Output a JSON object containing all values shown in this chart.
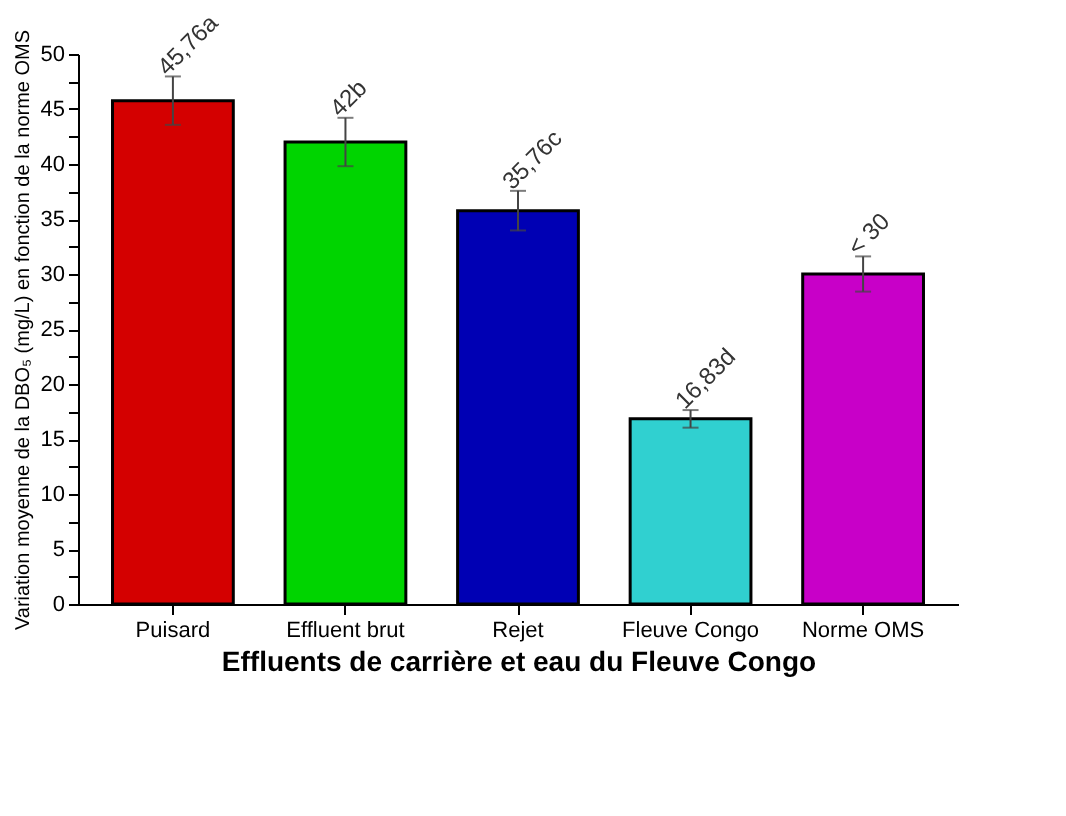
{
  "chart_data": {
    "type": "bar",
    "xlabel": "Effluents de carrière et eau du Fleuve Congo",
    "ylabel": "Variation moyenne de la DBO₅ (mg/L) en fonction de la norme OMS",
    "categories": [
      "Puisard",
      "Effluent brut",
      "Rejet",
      "Fleuve Congo",
      "Norme OMS"
    ],
    "values": [
      45.76,
      42,
      35.76,
      16.83,
      30
    ],
    "colors": [
      "#d40000",
      "#00d400",
      "#0000b4",
      "#30d0d0",
      "#c800c8"
    ],
    "errors": [
      2.2,
      2.2,
      1.8,
      0.8,
      1.6
    ],
    "value_labels": [
      "45,76a",
      "42b",
      "35,76c",
      "16,83d",
      "< 30"
    ],
    "ylim": [
      0,
      50
    ],
    "yticks": [
      0,
      {
        "value": 2.5,
        "label": null
      },
      5,
      {
        "value": 7.5,
        "label": null
      },
      10,
      {
        "value": 12.5,
        "label": null
      },
      15,
      {
        "value": 17.5,
        "label": null
      },
      20,
      {
        "value": 22.5,
        "label": null
      },
      25,
      {
        "value": 27.5,
        "label": null
      },
      30,
      {
        "value": 32.5,
        "label": null
      },
      35,
      {
        "value": 37.5,
        "label": null
      },
      40,
      {
        "value": 42.5,
        "label": null
      },
      45,
      {
        "value": 47.5,
        "label": null
      },
      50
    ],
    "grid": false,
    "legend": false
  }
}
